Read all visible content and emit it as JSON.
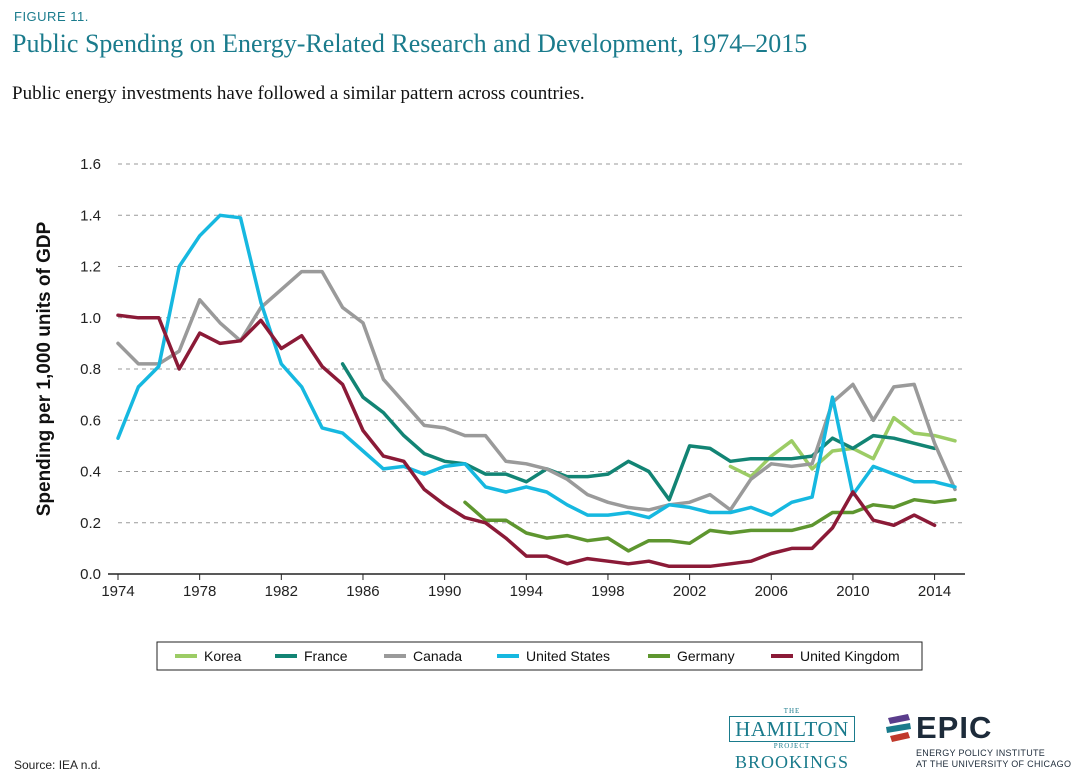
{
  "figure_label": "FIGURE 11.",
  "source": "Source: IEA n.d.",
  "logos": {
    "hamilton_the": "THE",
    "hamilton_name": "HAMILTON",
    "hamilton_project": "PROJECT",
    "brookings": "BROOKINGS",
    "epic_name": "EPIC",
    "epic_line1": "ENERGY POLICY INSTITUTE",
    "epic_line2": "AT THE UNIVERSITY OF CHICAGO"
  },
  "chart_data": {
    "type": "line",
    "title": "Public Spending on Energy-Related Research and Development, 1974–2015",
    "subtitle": "Public energy investments have followed a similar pattern across countries.",
    "xlabel": "",
    "ylabel": "Spending per 1,000 units of GDP",
    "xlim": [
      1974,
      2015
    ],
    "ylim": [
      0,
      1.6
    ],
    "xticks": [
      1974,
      1978,
      1982,
      1986,
      1990,
      1994,
      1998,
      2002,
      2006,
      2010,
      2014
    ],
    "yticks": [
      0,
      0.2,
      0.4,
      0.6,
      0.8,
      1.0,
      1.2,
      1.4,
      1.6
    ],
    "ytick_labels": [
      "0.0",
      "0.2",
      "0.4",
      "0.6",
      "0.8",
      "1.0",
      "1.2",
      "1.4",
      "1.6"
    ],
    "grid": true,
    "legend_position": "bottom",
    "series": [
      {
        "name": "Korea",
        "color": "#9ccc65",
        "x": [
          2004,
          2005,
          2006,
          2007,
          2008,
          2009,
          2010,
          2011,
          2012,
          2013,
          2014,
          2015
        ],
        "values": [
          0.42,
          0.38,
          0.46,
          0.52,
          0.41,
          0.48,
          0.49,
          0.45,
          0.61,
          0.55,
          0.54,
          0.52
        ]
      },
      {
        "name": "France",
        "color": "#128474",
        "x": [
          1985,
          1986,
          1987,
          1988,
          1989,
          1990,
          1991,
          1992,
          1993,
          1994,
          1995,
          1996,
          1997,
          1998,
          1999,
          2000,
          2001,
          2002,
          2003,
          2004,
          2005,
          2006,
          2007,
          2008,
          2009,
          2010,
          2011,
          2012,
          2013,
          2014
        ],
        "values": [
          0.82,
          0.69,
          0.63,
          0.54,
          0.47,
          0.44,
          0.43,
          0.39,
          0.39,
          0.36,
          0.41,
          0.38,
          0.38,
          0.39,
          0.44,
          0.4,
          0.29,
          0.5,
          0.49,
          0.44,
          0.45,
          0.45,
          0.45,
          0.46,
          0.53,
          0.49,
          0.54,
          0.53,
          0.51,
          0.49
        ]
      },
      {
        "name": "Canada",
        "color": "#9a9a9a",
        "x": [
          1974,
          1975,
          1976,
          1977,
          1978,
          1979,
          1980,
          1981,
          1982,
          1983,
          1984,
          1985,
          1986,
          1987,
          1988,
          1989,
          1990,
          1991,
          1992,
          1993,
          1994,
          1995,
          1996,
          1997,
          1998,
          1999,
          2000,
          2001,
          2002,
          2003,
          2004,
          2005,
          2006,
          2007,
          2008,
          2009,
          2010,
          2011,
          2012,
          2013,
          2014,
          2015
        ],
        "values": [
          0.9,
          0.82,
          0.82,
          0.87,
          1.07,
          0.98,
          0.91,
          1.04,
          1.11,
          1.18,
          1.18,
          1.04,
          0.98,
          0.76,
          0.67,
          0.58,
          0.57,
          0.54,
          0.54,
          0.44,
          0.43,
          0.41,
          0.37,
          0.31,
          0.28,
          0.26,
          0.25,
          0.27,
          0.28,
          0.31,
          0.25,
          0.37,
          0.43,
          0.42,
          0.43,
          0.67,
          0.74,
          0.6,
          0.73,
          0.74,
          0.51,
          0.33
        ]
      },
      {
        "name": "United States",
        "color": "#16b8e0",
        "x": [
          1974,
          1975,
          1976,
          1977,
          1978,
          1979,
          1980,
          1981,
          1982,
          1983,
          1984,
          1985,
          1986,
          1987,
          1988,
          1989,
          1990,
          1991,
          1992,
          1993,
          1994,
          1995,
          1996,
          1997,
          1998,
          1999,
          2000,
          2001,
          2002,
          2003,
          2004,
          2005,
          2006,
          2007,
          2008,
          2009,
          2010,
          2011,
          2012,
          2013,
          2014,
          2015
        ],
        "values": [
          0.53,
          0.73,
          0.81,
          1.2,
          1.32,
          1.4,
          1.39,
          1.06,
          0.82,
          0.73,
          0.57,
          0.55,
          0.48,
          0.41,
          0.42,
          0.39,
          0.42,
          0.43,
          0.34,
          0.32,
          0.34,
          0.32,
          0.27,
          0.23,
          0.23,
          0.24,
          0.22,
          0.27,
          0.26,
          0.24,
          0.24,
          0.26,
          0.23,
          0.28,
          0.3,
          0.69,
          0.31,
          0.42,
          0.39,
          0.36,
          0.36,
          0.34
        ]
      },
      {
        "name": "Germany",
        "color": "#5e962f",
        "x": [
          1991,
          1992,
          1993,
          1994,
          1995,
          1996,
          1997,
          1998,
          1999,
          2000,
          2001,
          2002,
          2003,
          2004,
          2005,
          2006,
          2007,
          2008,
          2009,
          2010,
          2011,
          2012,
          2013,
          2014,
          2015
        ],
        "values": [
          0.28,
          0.21,
          0.21,
          0.16,
          0.14,
          0.15,
          0.13,
          0.14,
          0.09,
          0.13,
          0.13,
          0.12,
          0.17,
          0.16,
          0.17,
          0.17,
          0.17,
          0.19,
          0.24,
          0.24,
          0.27,
          0.26,
          0.29,
          0.28,
          0.29
        ]
      },
      {
        "name": "United Kingdom",
        "color": "#8b1a37",
        "x": [
          1974,
          1975,
          1976,
          1977,
          1978,
          1979,
          1980,
          1981,
          1982,
          1983,
          1984,
          1985,
          1986,
          1987,
          1988,
          1989,
          1990,
          1991,
          1992,
          1993,
          1994,
          1995,
          1996,
          1997,
          1998,
          1999,
          2000,
          2001,
          2002,
          2003,
          2004,
          2005,
          2006,
          2007,
          2008,
          2009,
          2010,
          2011,
          2012,
          2013,
          2014
        ],
        "values": [
          1.01,
          1.0,
          1.0,
          0.8,
          0.94,
          0.9,
          0.91,
          0.99,
          0.88,
          0.93,
          0.81,
          0.74,
          0.56,
          0.46,
          0.44,
          0.33,
          0.27,
          0.22,
          0.2,
          0.14,
          0.07,
          0.07,
          0.04,
          0.06,
          0.05,
          0.04,
          0.05,
          0.03,
          0.03,
          0.03,
          0.04,
          0.05,
          0.08,
          0.1,
          0.1,
          0.18,
          0.32,
          0.21,
          0.19,
          0.23,
          0.19
        ]
      }
    ]
  }
}
